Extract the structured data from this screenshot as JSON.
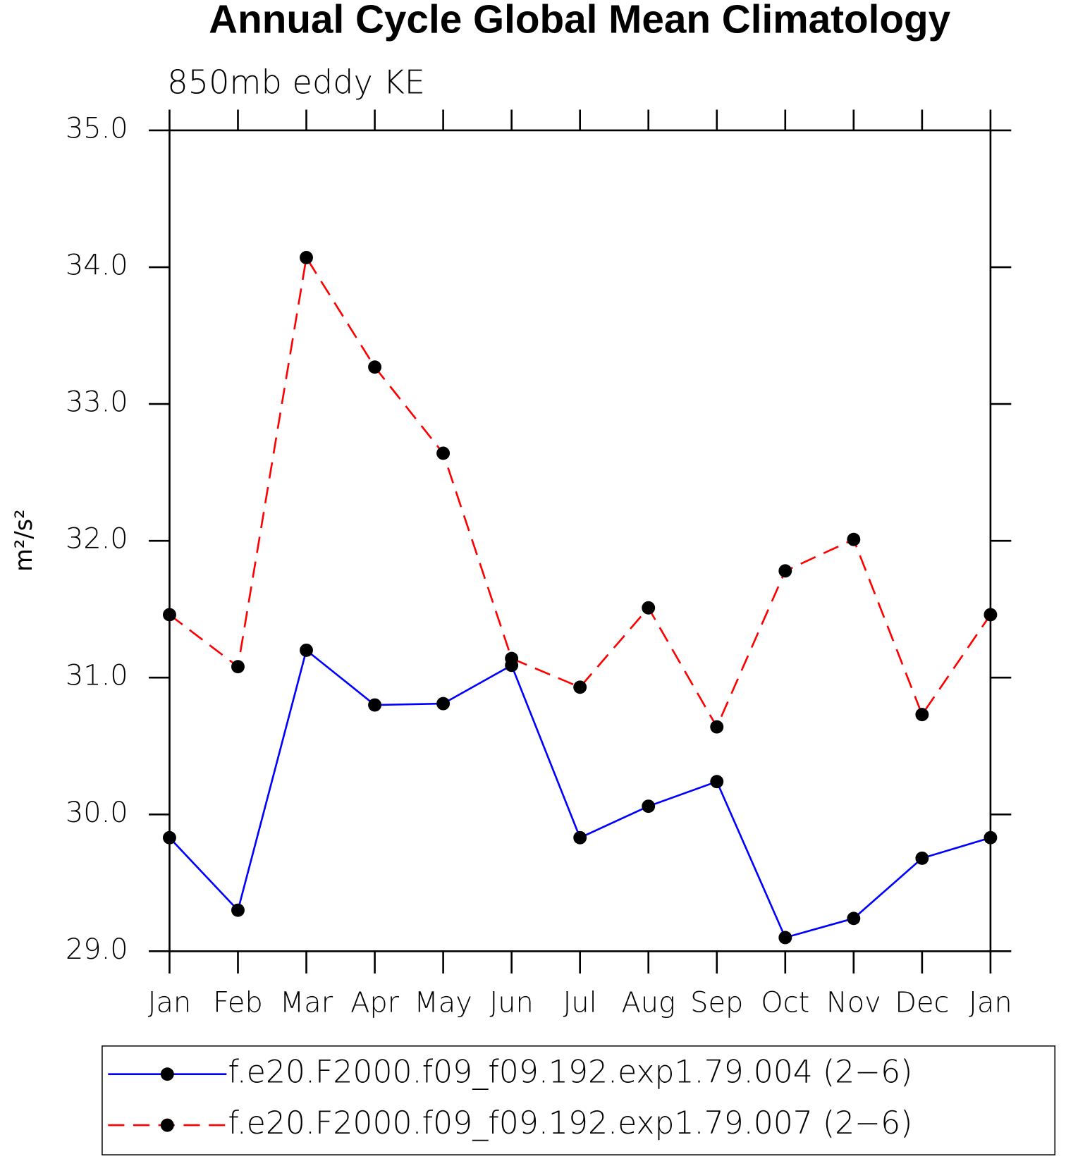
{
  "chart_data": {
    "type": "line",
    "title": "Annual Cycle Global Mean Climatology",
    "subtitle": "850mb eddy KE",
    "y_label": "m²/s²",
    "categories": [
      "Jan",
      "Feb",
      "Mar",
      "Apr",
      "May",
      "Jun",
      "Jul",
      "Aug",
      "Sep",
      "Oct",
      "Nov",
      "Dec",
      "Jan"
    ],
    "series": [
      {
        "name": "f.e20.F2000.f09_f09.192.exp1.79.004 (2−6)",
        "color": "#0000ff",
        "linestyle": "solid",
        "values": [
          29.83,
          29.3,
          31.2,
          30.8,
          30.81,
          31.09,
          29.83,
          30.06,
          30.24,
          29.1,
          29.24,
          29.68,
          29.83
        ]
      },
      {
        "name": "f.e20.F2000.f09_f09.192.exp1.79.007 (2−6)",
        "color": "#ff0000",
        "linestyle": "dashed",
        "values": [
          31.46,
          31.08,
          34.07,
          33.27,
          32.64,
          31.14,
          30.93,
          31.51,
          30.64,
          31.78,
          32.01,
          30.73,
          31.46
        ]
      }
    ],
    "ylim": [
      29,
      35
    ],
    "yticks": [
      {
        "value": 29,
        "label": "29.0"
      },
      {
        "value": 30,
        "label": "30.0"
      },
      {
        "value": 31,
        "label": "31.0"
      },
      {
        "value": 32,
        "label": "32.0"
      },
      {
        "value": 33,
        "label": "33.0"
      },
      {
        "value": 34,
        "label": "34.0"
      },
      {
        "value": 35,
        "label": "35.0"
      }
    ],
    "grid": false,
    "legend": "bottom"
  }
}
